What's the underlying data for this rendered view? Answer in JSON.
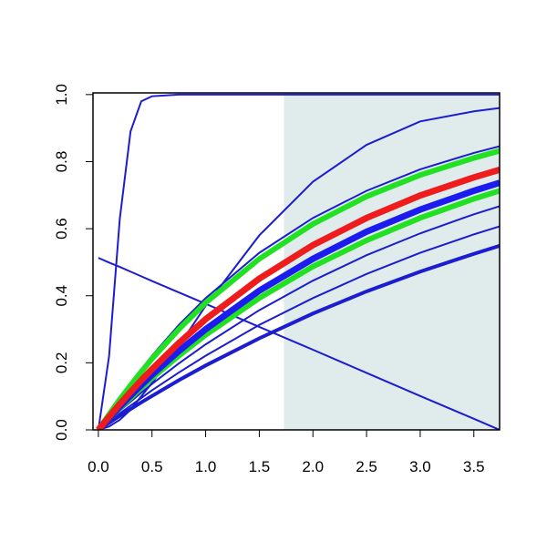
{
  "chart_data": {
    "type": "line",
    "x": [
      0,
      0.1,
      0.2,
      0.3,
      0.4,
      0.5,
      0.75,
      1,
      1.5,
      2,
      2.5,
      3,
      3.5,
      3.74
    ],
    "xlim": [
      -0.05,
      3.74
    ],
    "ylim": [
      0,
      1.005
    ],
    "xticks": [
      {
        "value": 0,
        "label": "0.0"
      },
      {
        "value": 0.5,
        "label": "0.5"
      },
      {
        "value": 1,
        "label": "1.0"
      },
      {
        "value": 1.5,
        "label": "1.5"
      },
      {
        "value": 2,
        "label": "2.0"
      },
      {
        "value": 2.5,
        "label": "2.5"
      },
      {
        "value": 3,
        "label": "3.0"
      },
      {
        "value": 3.5,
        "label": "3.5"
      }
    ],
    "yticks": [
      {
        "value": 0,
        "label": "0.0"
      },
      {
        "value": 0.2,
        "label": "0.2"
      },
      {
        "value": 0.4,
        "label": "0.4"
      },
      {
        "value": 0.6,
        "label": "0.6"
      },
      {
        "value": 0.8,
        "label": "0.8"
      },
      {
        "value": 1,
        "label": "1.0"
      }
    ],
    "shaded_region": {
      "xlim": [
        1.73,
        3.74
      ],
      "color": "#e0ecec"
    },
    "series": [
      {
        "color": "#1c1cd0",
        "width": 2,
        "values": [
          0,
          0.22,
          0.63,
          0.89,
          0.98,
          0.995,
          1,
          1,
          1,
          1,
          1,
          1,
          1,
          1
        ]
      },
      {
        "color": "#1c1cd0",
        "width": 2,
        "values": [
          0,
          0.01,
          0.03,
          0.06,
          0.1,
          0.14,
          0.25,
          0.37,
          0.58,
          0.74,
          0.85,
          0.92,
          0.95,
          0.96
        ]
      },
      {
        "color": "#1c1cd0",
        "width": 2,
        "values": [
          0.513,
          0.499,
          0.486,
          0.472,
          0.458,
          0.444,
          0.41,
          0.376,
          0.307,
          0.239,
          0.17,
          0.101,
          0.033,
          0
        ]
      },
      {
        "color": "#1c1cd0",
        "width": 2,
        "values": [
          0,
          0.049,
          0.095,
          0.139,
          0.181,
          0.221,
          0.313,
          0.393,
          0.528,
          0.632,
          0.713,
          0.777,
          0.826,
          0.846
        ]
      },
      {
        "color": "#1c1cd0",
        "width": 2,
        "values": [
          0,
          0.029,
          0.057,
          0.084,
          0.111,
          0.137,
          0.198,
          0.255,
          0.357,
          0.445,
          0.521,
          0.586,
          0.643,
          0.667
        ]
      },
      {
        "color": "#1c1cd0",
        "width": 2,
        "values": [
          0,
          0.025,
          0.049,
          0.072,
          0.095,
          0.118,
          0.171,
          0.221,
          0.313,
          0.393,
          0.465,
          0.528,
          0.583,
          0.607
        ]
      },
      {
        "color": "#1c1cd0",
        "width": 4,
        "values": [
          0,
          0.021,
          0.042,
          0.062,
          0.082,
          0.101,
          0.148,
          0.192,
          0.273,
          0.347,
          0.413,
          0.472,
          0.525,
          0.549
        ]
      },
      {
        "color": "#22e022",
        "width": 6,
        "values": [
          0,
          0.046,
          0.091,
          0.133,
          0.173,
          0.212,
          0.3,
          0.379,
          0.51,
          0.614,
          0.696,
          0.76,
          0.811,
          0.832
        ]
      },
      {
        "color": "#22e022",
        "width": 6,
        "values": [
          0,
          0.033,
          0.065,
          0.095,
          0.125,
          0.154,
          0.221,
          0.283,
          0.393,
          0.487,
          0.565,
          0.632,
          0.689,
          0.713
        ]
      },
      {
        "color": "#1c1cee",
        "width": 7,
        "values": [
          0,
          0.035,
          0.069,
          0.102,
          0.133,
          0.164,
          0.235,
          0.3,
          0.415,
          0.51,
          0.591,
          0.657,
          0.713,
          0.737
        ]
      },
      {
        "color": "#ee1c1c",
        "width": 7,
        "values": [
          0,
          0.039,
          0.077,
          0.113,
          0.148,
          0.181,
          0.259,
          0.33,
          0.451,
          0.551,
          0.632,
          0.699,
          0.753,
          0.776
        ]
      }
    ]
  }
}
